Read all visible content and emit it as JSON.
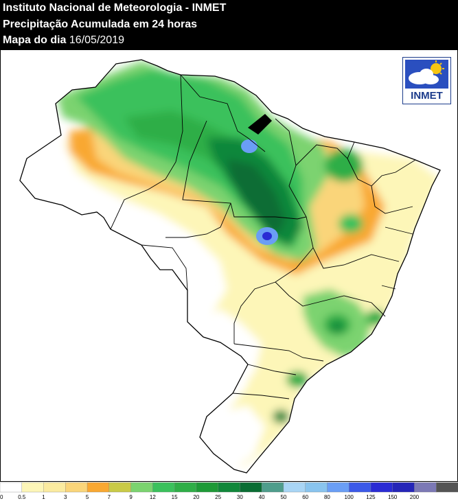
{
  "header": {
    "line1": "Instituto Nacional de Meteorologia - INMET",
    "line2": "Precipitação Acumulada em 24 horas",
    "line3_label": "Mapa do dia",
    "line3_date": "16/05/2019"
  },
  "logo": {
    "text": "INMET",
    "icon": "cloud-sun-icon"
  },
  "legend": {
    "colors": [
      "#ffffff",
      "#fdf6b8",
      "#fbeba0",
      "#fad57a",
      "#f9a832",
      "#c9ca47",
      "#7bd36f",
      "#3bc15c",
      "#2fae47",
      "#1e9a37",
      "#11873a",
      "#0a6d34",
      "#4f9d8c",
      "#a9d5f5",
      "#89c4ee",
      "#6a9ef5",
      "#3b59e8",
      "#2a2bd4",
      "#2525b8",
      "#7c79b5",
      "#545454"
    ],
    "labels": [
      "0",
      "0.5",
      "1",
      "3",
      "5",
      "7",
      "9",
      "12",
      "15",
      "20",
      "25",
      "30",
      "40",
      "50",
      "60",
      "80",
      "100",
      "125",
      "150",
      "200"
    ]
  }
}
